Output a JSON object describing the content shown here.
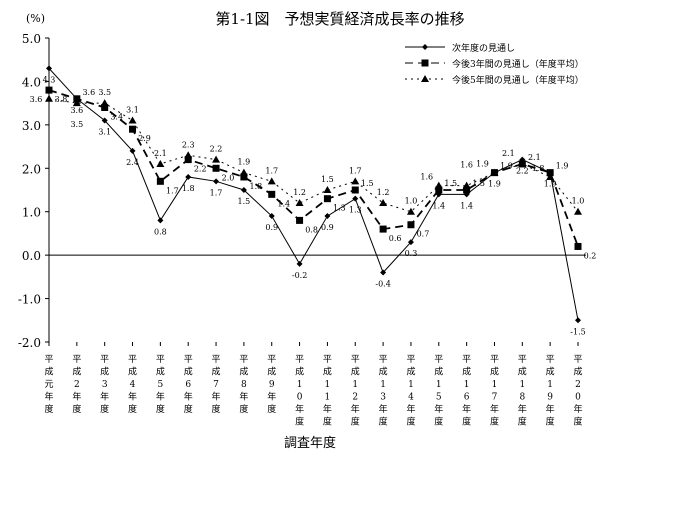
{
  "chart_data": {
    "type": "line",
    "title": "第1-1図　予想実質経済成長率の推移",
    "ylabel": "(%)",
    "xlabel": "調査年度",
    "ylim": [
      -2.0,
      5.0
    ],
    "yticks": [
      "5.0",
      "4.0",
      "3.0",
      "2.0",
      "1.0",
      "0.0",
      "-1.0",
      "-2.0"
    ],
    "categories": [
      [
        "平",
        "成",
        "元",
        "年",
        "度"
      ],
      [
        "平",
        "成",
        "2",
        "年",
        "度"
      ],
      [
        "平",
        "成",
        "3",
        "年",
        "度"
      ],
      [
        "平",
        "成",
        "4",
        "年",
        "度"
      ],
      [
        "平",
        "成",
        "5",
        "年",
        "度"
      ],
      [
        "平",
        "成",
        "6",
        "年",
        "度"
      ],
      [
        "平",
        "成",
        "7",
        "年",
        "度"
      ],
      [
        "平",
        "成",
        "8",
        "年",
        "度"
      ],
      [
        "平",
        "成",
        "9",
        "年",
        "度"
      ],
      [
        "平",
        "成",
        "1",
        "0",
        "年",
        "度"
      ],
      [
        "平",
        "成",
        "1",
        "1",
        "年",
        "度"
      ],
      [
        "平",
        "成",
        "1",
        "2",
        "年",
        "度"
      ],
      [
        "平",
        "成",
        "1",
        "3",
        "年",
        "度"
      ],
      [
        "平",
        "成",
        "1",
        "4",
        "年",
        "度"
      ],
      [
        "平",
        "成",
        "1",
        "5",
        "年",
        "度"
      ],
      [
        "平",
        "成",
        "1",
        "6",
        "年",
        "度"
      ],
      [
        "平",
        "成",
        "1",
        "7",
        "年",
        "度"
      ],
      [
        "平",
        "成",
        "1",
        "8",
        "年",
        "度"
      ],
      [
        "平",
        "成",
        "1",
        "9",
        "年",
        "度"
      ],
      [
        "平",
        "成",
        "2",
        "0",
        "年",
        "度"
      ]
    ],
    "legend_position": "top-right",
    "series": [
      {
        "name": "次年度の見通し",
        "marker": "diamond",
        "dash": "solid",
        "values": [
          4.3,
          3.6,
          3.1,
          2.4,
          0.8,
          1.8,
          1.7,
          1.5,
          0.9,
          -0.2,
          0.9,
          1.3,
          -0.4,
          0.3,
          1.4,
          1.4,
          1.9,
          2.2,
          1.9,
          -1.5
        ]
      },
      {
        "name": "今後3年間の見通し（年度平均）",
        "marker": "square",
        "dash": "dashed",
        "values": [
          3.8,
          3.6,
          3.4,
          2.9,
          1.7,
          2.2,
          2.0,
          1.8,
          1.4,
          0.8,
          1.3,
          1.5,
          0.6,
          0.7,
          1.5,
          1.5,
          1.9,
          2.1,
          1.9,
          0.2
        ]
      },
      {
        "name": "今後5年間の見通し（年度平均）",
        "marker": "triangle",
        "dash": "dotted",
        "values": [
          3.6,
          3.5,
          3.5,
          3.1,
          2.1,
          2.3,
          2.2,
          1.9,
          1.7,
          1.2,
          1.5,
          1.7,
          1.2,
          1.0,
          1.6,
          1.6,
          1.9,
          2.1,
          1.8,
          1.0
        ]
      }
    ]
  }
}
